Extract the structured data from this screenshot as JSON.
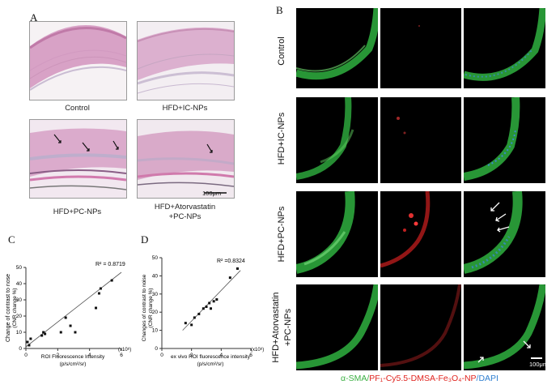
{
  "panel_a": {
    "label": "A",
    "captions": [
      "Control",
      "HFD+IC-NPs",
      "HFD+PC-NPs",
      "HFD+Atorvastatin",
      "+PC-NPs"
    ],
    "scale_bar": "100μm"
  },
  "panel_b": {
    "label": "B",
    "row_labels": [
      "Control",
      "HFD+IC-NPs",
      "HFD+PC-NPs",
      "HFD+Atorvastatin",
      "+PC-NPs"
    ],
    "scale_bar": "100μm",
    "legend": {
      "green_text": "α-SMA/",
      "red_text": "PF₁-Cy5.5-DMSA-Fe₃O₄-NP",
      "blue_text": "/DAPI",
      "green_color": "#3cb043",
      "red_color": "#e0241f",
      "blue_color": "#2f7fd0"
    }
  },
  "chart_data": [
    {
      "panel": "C",
      "type": "scatter",
      "ylabel_line1": "Change of contrast to nose",
      "ylabel_line2": "(CNR change %)",
      "xlabel_line1": "ROI Fluorescence Intensity",
      "xlabel_line2": "(p/s/cm²/sr)",
      "x_exponent": "(x10⁸)",
      "r2": "R² = 0.8719",
      "xlim": [
        0,
        6
      ],
      "ylim": [
        0,
        50
      ],
      "xticks": [
        "0",
        "2",
        "4",
        "6"
      ],
      "yticks": [
        "0",
        "10",
        "20",
        "30",
        "40",
        "50"
      ],
      "x": [
        0.1,
        0.2,
        0.3,
        1.0,
        1.1,
        1.2,
        2.2,
        2.5,
        2.8,
        3.1,
        4.4,
        4.6,
        4.7,
        5.4
      ],
      "y": [
        4,
        2,
        6,
        8,
        10,
        9,
        10,
        19,
        14,
        10,
        25,
        34,
        37,
        42
      ],
      "fit": [
        [
          0,
          1
        ],
        [
          6,
          47
        ]
      ]
    },
    {
      "panel": "D",
      "type": "scatter",
      "ylabel_line1": "Changes of contrast to noise",
      "ylabel_line2": "(CNR change %)",
      "xlabel_line1": "ex vivo ROI fluorescence intensity",
      "xlabel_line2": "(p/s/cm²/sr)",
      "x_exponent": "(x10⁸)",
      "r2": "R² =0.8324",
      "xlim": [
        0,
        6
      ],
      "ylim": [
        0,
        50
      ],
      "xticks": [
        "0",
        "2",
        "4",
        "6"
      ],
      "yticks": [
        "0",
        "10",
        "20",
        "30",
        "40",
        "50"
      ],
      "x": [
        1.6,
        2.0,
        2.2,
        2.5,
        2.8,
        3.0,
        3.2,
        3.3,
        3.5,
        3.7,
        4.6,
        5.1
      ],
      "y": [
        14,
        13,
        17,
        19,
        22,
        23,
        25,
        22,
        26,
        27,
        39,
        44
      ],
      "fit": [
        [
          1.4,
          10
        ],
        [
          5.3,
          43
        ]
      ]
    }
  ]
}
